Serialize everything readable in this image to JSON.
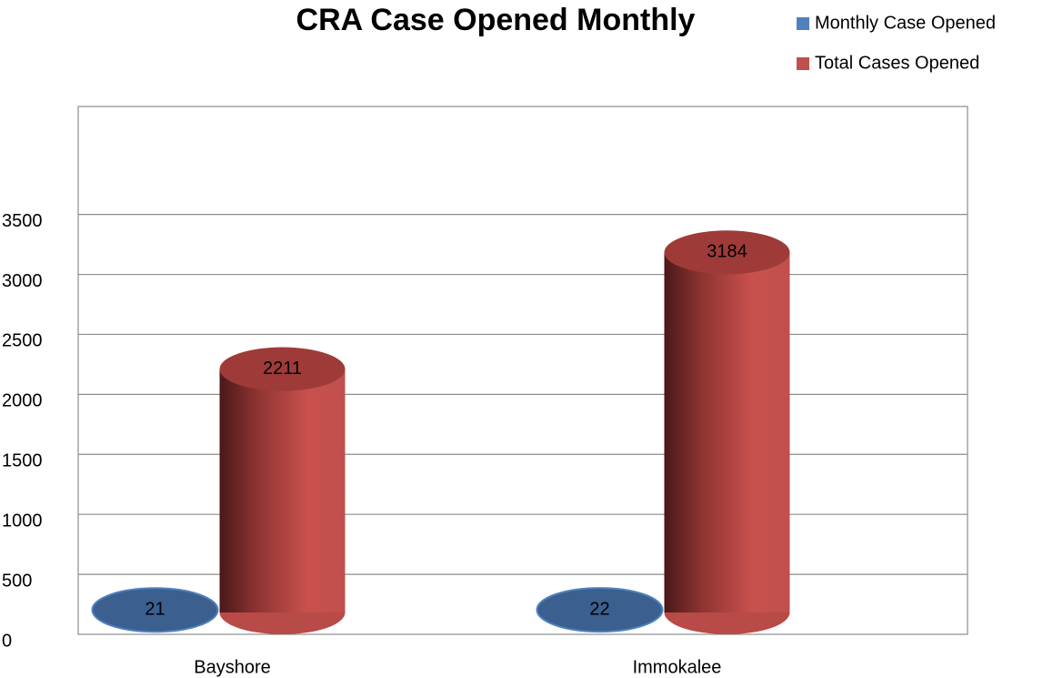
{
  "chart_data": {
    "type": "bar",
    "title": "CRA Case Opened Monthly",
    "categories": [
      "Bayshore",
      "Immokalee"
    ],
    "series": [
      {
        "name": "Monthly Case Opened",
        "color": "#4f81bd",
        "values": [
          21,
          22
        ]
      },
      {
        "name": "Total Cases Opened",
        "color": "#c0504d",
        "values": [
          2211,
          3184
        ]
      }
    ],
    "ylim": [
      0,
      4400
    ],
    "yticks": [
      0,
      500,
      1000,
      1500,
      2000,
      2500,
      3000,
      3500
    ],
    "grid": true,
    "legend": "top-right"
  }
}
